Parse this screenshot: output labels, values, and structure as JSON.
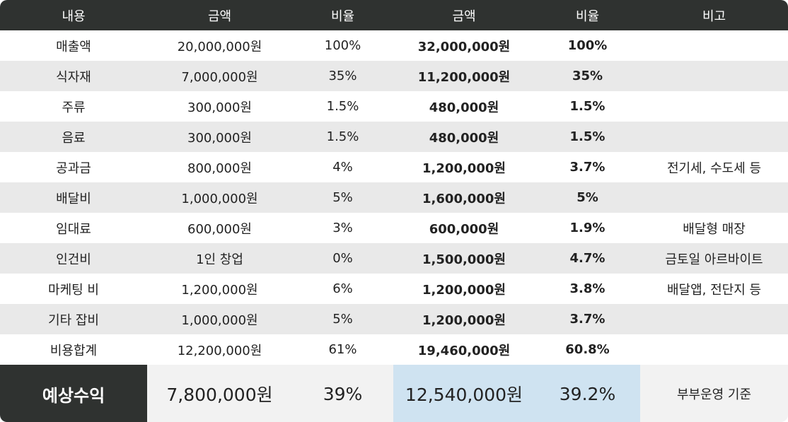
{
  "headers": [
    "내용",
    "금액",
    "비율",
    "금액",
    "비율",
    "비고"
  ],
  "rows": [
    {
      "item": "매출액",
      "amount1": "20,000,000원",
      "ratio1": "100%",
      "amount2": "32,000,000원",
      "ratio2": "100%",
      "note": ""
    },
    {
      "item": "식자재",
      "amount1": "7,000,000원",
      "ratio1": "35%",
      "amount2": "11,200,000원",
      "ratio2": "35%",
      "note": ""
    },
    {
      "item": "주류",
      "amount1": "300,000원",
      "ratio1": "1.5%",
      "amount2": "480,000원",
      "ratio2": "1.5%",
      "note": ""
    },
    {
      "item": "음료",
      "amount1": "300,000원",
      "ratio1": "1.5%",
      "amount2": "480,000원",
      "ratio2": "1.5%",
      "note": ""
    },
    {
      "item": "공과금",
      "amount1": "800,000원",
      "ratio1": "4%",
      "amount2": "1,200,000원",
      "ratio2": "3.7%",
      "note": "전기세, 수도세 등"
    },
    {
      "item": "배달비",
      "amount1": "1,000,000원",
      "ratio1": "5%",
      "amount2": "1,600,000원",
      "ratio2": "5%",
      "note": ""
    },
    {
      "item": "임대료",
      "amount1": "600,000원",
      "ratio1": "3%",
      "amount2": "600,000원",
      "ratio2": "1.9%",
      "note": "배달형 매장"
    },
    {
      "item": "인건비",
      "amount1": "1인 창업",
      "ratio1": "0%",
      "amount2": "1,500,000원",
      "ratio2": "4.7%",
      "note": "금토일 아르바이트"
    },
    {
      "item": "마케팅 비",
      "amount1": "1,200,000원",
      "ratio1": "6%",
      "amount2": "1,200,000원",
      "ratio2": "3.8%",
      "note": "배달앱, 전단지 등"
    },
    {
      "item": "기타 잡비",
      "amount1": "1,000,000원",
      "ratio1": "5%",
      "amount2": "1,200,000원",
      "ratio2": "3.7%",
      "note": ""
    },
    {
      "item": "비용합계",
      "amount1": "12,200,000원",
      "ratio1": "61%",
      "amount2": "19,460,000원",
      "ratio2": "60.8%",
      "note": ""
    }
  ],
  "summary": {
    "label": "예상수익",
    "amount1": "7,800,000원",
    "ratio1": "39%",
    "amount2": "12,540,000원",
    "ratio2": "39.2%",
    "note": "부부운영 기준"
  },
  "colors": {
    "header_bg": "#2f3230",
    "stripe_bg": "#e9e9e9",
    "summary_highlight": "#cfe3f1",
    "summary_plain": "#f2f2f2"
  }
}
